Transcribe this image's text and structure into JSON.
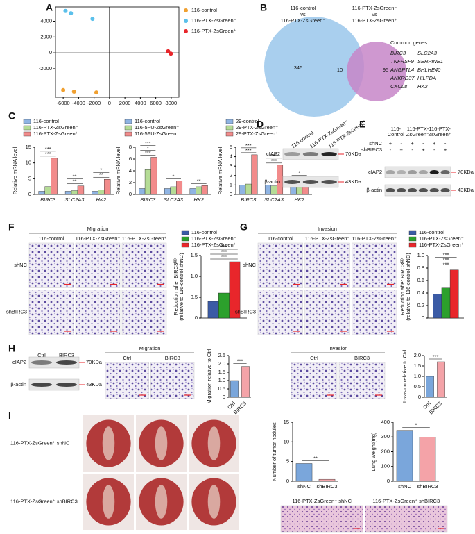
{
  "panel_labels": [
    "A",
    "B",
    "C",
    "D",
    "E",
    "F",
    "G",
    "H",
    "I"
  ],
  "chart_data": [
    {
      "type": "scatter",
      "xlim": [
        -7000,
        9000
      ],
      "ylim": [
        -5600,
        5800
      ],
      "xticks": [
        -6000,
        -4000,
        -2000,
        0,
        2000,
        4000,
        6000,
        8000
      ],
      "yticks": [
        -2000,
        0,
        2000,
        4000
      ],
      "series": [
        {
          "name": "116-control",
          "color": "#f0a030",
          "x": [
            -6000,
            -4600,
            -1700
          ],
          "y": [
            -4700,
            -4900,
            -5000
          ]
        },
        {
          "name": "116-PTX-ZsGreen⁻",
          "color": "#5bc0eb",
          "x": [
            -5700,
            -5000,
            -2200
          ],
          "y": [
            5300,
            5000,
            4300
          ]
        },
        {
          "name": "116-PTX-ZsGreen⁺",
          "color": "#e8262b",
          "x": [
            7600,
            7950
          ],
          "y": [
            200,
            -100
          ]
        }
      ]
    },
    {
      "type": "bar",
      "ylabel": "Relative mRNA level",
      "categories": [
        "BIRC3",
        "SLC2A3",
        "HK2"
      ],
      "ylim": [
        0,
        15
      ],
      "yticks": [
        0,
        5,
        10,
        15
      ],
      "series": [
        {
          "name": "116-control",
          "color": "#8fb4e3",
          "values": [
            1,
            1,
            1
          ]
        },
        {
          "name": "116-PTX-ZsGreen⁻",
          "color": "#b5dc96",
          "values": [
            2.5,
            1.2,
            1.5
          ]
        },
        {
          "name": "116-PTX-ZsGreen⁺",
          "color": "#f28b8b",
          "values": [
            11.5,
            2.7,
            4.8
          ]
        }
      ],
      "annotations": [
        [
          "***",
          "***"
        ],
        [
          "**",
          "**"
        ],
        [
          "**",
          "*"
        ]
      ]
    },
    {
      "type": "bar",
      "ylabel": "Relative mRNA level",
      "categories": [
        "BIRC3",
        "SLC2A3",
        "HK2"
      ],
      "ylim": [
        0,
        8
      ],
      "yticks": [
        0,
        2,
        4,
        6,
        8
      ],
      "series": [
        {
          "name": "116-control",
          "color": "#8fb4e3",
          "values": [
            1,
            1,
            1
          ]
        },
        {
          "name": "116-5FU-ZsGreen⁻",
          "color": "#b5dc96",
          "values": [
            4.2,
            1.3,
            1.3
          ]
        },
        {
          "name": "116-5FU-ZsGreen⁺",
          "color": "#f28b8b",
          "values": [
            6.3,
            2.3,
            1.5
          ]
        }
      ],
      "annotations": [
        [
          "***",
          "*",
          "***"
        ],
        [
          "*"
        ],
        [
          "**"
        ]
      ]
    },
    {
      "type": "bar",
      "ylabel": "Relative mRNA level",
      "categories": [
        "BIRC3",
        "SLC2A3",
        "HK2"
      ],
      "ylim": [
        0,
        5
      ],
      "yticks": [
        0,
        1,
        2,
        3,
        4,
        5
      ],
      "series": [
        {
          "name": "29-control",
          "color": "#8fb4e3",
          "values": [
            1,
            1,
            1
          ]
        },
        {
          "name": "29-PTX-ZsGreen⁻",
          "color": "#b5dc96",
          "values": [
            1.1,
            0.9,
            1.1
          ]
        },
        {
          "name": "29-PTX-ZsGreen⁺",
          "color": "#f28b8b",
          "values": [
            4.2,
            3.1,
            1.8
          ]
        }
      ],
      "annotations": [
        [
          "***",
          "***"
        ],
        [
          "***",
          "***"
        ],
        [
          "*"
        ]
      ]
    },
    {
      "type": "bar",
      "ylabel": [
        "Reduction after BIRC3ᴷᴰ",
        "(relative to 116-control shNC)"
      ],
      "categories": [
        null
      ],
      "ylim": [
        0,
        1.5
      ],
      "yticks": [
        0,
        0.5,
        {
          "value": 1,
          "label": "1.0"
        },
        1.5
      ],
      "series": [
        {
          "name": "116-control",
          "color": "#3b5ba5",
          "values": [
            0.4
          ]
        },
        {
          "name": "116-PTX-ZsGreen⁻",
          "color": "#2ca02c",
          "values": [
            0.6
          ]
        },
        {
          "name": "116-PTX-ZsGreen⁺",
          "color": "#e8262b",
          "values": [
            1.35
          ]
        }
      ],
      "annotations": [
        "***",
        "***",
        "***"
      ]
    },
    {
      "type": "bar",
      "ylabel": [
        "Reduction after BIRC3ᴷᴰ",
        "(relative to 116-control shNC)"
      ],
      "categories": [
        null
      ],
      "ylim": [
        0,
        1
      ],
      "yticks": [
        0,
        0.2,
        0.4,
        0.6,
        0.8,
        {
          "value": 1,
          "label": "1.0"
        }
      ],
      "series": [
        {
          "name": "116-control",
          "color": "#3b5ba5",
          "values": [
            0.38
          ]
        },
        {
          "name": "116-PTX-ZsGreen⁻",
          "color": "#2ca02c",
          "values": [
            0.48
          ]
        },
        {
          "name": "116-PTX-ZsGreen⁺",
          "color": "#e8262b",
          "values": [
            0.77
          ]
        }
      ],
      "annotations": [
        "***",
        "***",
        "***"
      ]
    },
    {
      "type": "bar",
      "ylabel": "Migration relative to Ctrl",
      "categories": [
        "Ctrl",
        "BIRC3"
      ],
      "values": [
        1,
        1.85
      ],
      "colors": [
        "#7aa6db",
        "#f4a3a8"
      ],
      "ylim": [
        0,
        2.5
      ],
      "yticks": [
        0,
        0.5,
        {
          "value": 1,
          "label": "1.0"
        },
        1.5,
        {
          "value": 2,
          "label": "2.0"
        },
        2.5
      ],
      "annotations": [
        "***"
      ]
    },
    {
      "type": "bar",
      "ylabel": "Invasion relative to Ctrl",
      "categories": [
        "Ctrl",
        "BIRC3"
      ],
      "values": [
        1,
        1.7
      ],
      "colors": [
        "#7aa6db",
        "#f4a3a8"
      ],
      "ylim": [
        0,
        2
      ],
      "yticks": [
        0,
        0.5,
        {
          "value": 1,
          "label": "1.0"
        },
        1.5,
        {
          "value": 2,
          "label": "2.0"
        }
      ],
      "annotations": [
        "***"
      ]
    },
    {
      "type": "bar",
      "ylabel": "Number of tumor nodules",
      "categories": [
        "shNC",
        "shBIRC3"
      ],
      "values": [
        4.5,
        0.5
      ],
      "colors": [
        "#7aa6db",
        "#f4a3a8"
      ],
      "ylim": [
        0,
        15
      ],
      "yticks": [
        0,
        5,
        10,
        15
      ],
      "annotations": [
        "**"
      ]
    },
    {
      "type": "bar",
      "ylabel": "Lung weight(mg)",
      "categories": [
        "shNC",
        "shBIRC3"
      ],
      "values": [
        345,
        300
      ],
      "colors": [
        "#7aa6db",
        "#f4a3a8"
      ],
      "ylim": [
        0,
        400
      ],
      "yticks": [
        0,
        100,
        200,
        300,
        400
      ],
      "annotations": [
        "*"
      ]
    }
  ],
  "venn": {
    "sets": [
      {
        "label": [
          "116-control",
          "vs",
          "116-PTX-ZsGreen⁻"
        ],
        "color": "#a9cfee"
      },
      {
        "label": [
          "116-PTX-ZsGreen⁻",
          "vs",
          "116-PTX-ZsGreen⁺"
        ],
        "color": "#c786c8"
      }
    ],
    "counts": [
      345,
      10,
      95
    ],
    "common_genes_title": "Common genes",
    "common_genes": [
      "BIRC3",
      "SLC2A3",
      "TNFRSF9",
      "SERPINE1",
      "ANGPTL4",
      "BHLHE40",
      "ANKRD37",
      "HILPDA",
      "CXCL8",
      "HK2"
    ]
  },
  "blots": [
    {
      "lanes": [
        "116-control",
        "116-PTX-ZsGreen⁻",
        "116-PTX-ZsGreen⁺"
      ],
      "rows": [
        {
          "name": "cIAP2",
          "marker": "70KDa"
        },
        {
          "name": "β-actin",
          "marker": "43KDa"
        }
      ]
    },
    {
      "lanes": [
        [
          "116-",
          "Control"
        ],
        [
          "116-PTX-",
          "ZsGreen⁻"
        ],
        [
          "116-PTX-",
          "ZsGreen⁺"
        ]
      ],
      "conditions": [
        {
          "name": "shNC",
          "signs": [
            "+",
            "-",
            "+",
            "-",
            "+",
            "-"
          ]
        },
        {
          "name": "shBIRC3",
          "signs": [
            "-",
            "+",
            "-",
            "+",
            "-",
            "+"
          ]
        }
      ],
      "rows": [
        {
          "name": "cIAP2",
          "marker": "70KDa"
        },
        {
          "name": "β-actin",
          "marker": "43KDa"
        }
      ]
    },
    {
      "lanes": [
        "Ctrl",
        "BIRC3"
      ],
      "rows": [
        {
          "name": "cIAP2",
          "marker": "70KDa"
        },
        {
          "name": "β-actin",
          "marker": "43KDa"
        }
      ]
    }
  ],
  "image_panels": [
    {
      "title": "Migration",
      "columns": [
        "116-control",
        "116-PTX-ZsGreen⁻",
        "116-PTX-ZsGreen⁺"
      ],
      "rows": [
        "shNC",
        "shBIRC3"
      ]
    },
    {
      "title": "Invasion",
      "columns": [
        "116-control",
        "116-PTX-ZsGreen⁻",
        "116-PTX-ZsGreen⁺"
      ],
      "rows": [
        "shNC",
        "shBIRC3"
      ]
    },
    {
      "title": "Migration",
      "columns": [
        "Ctrl",
        "BIRC3"
      ]
    },
    {
      "title": "Invasion",
      "columns": [
        "Ctrl",
        "BIRC3"
      ]
    },
    {
      "rows": [
        "116-PTX-ZsGreen⁺ shNC",
        "116-PTX-ZsGreen⁺ shBIRC3"
      ]
    },
    {
      "columns": [
        "116-PTX-ZsGreen⁺ shNC",
        "116-PTX-ZsGreen⁺ shBIRC3"
      ]
    }
  ]
}
